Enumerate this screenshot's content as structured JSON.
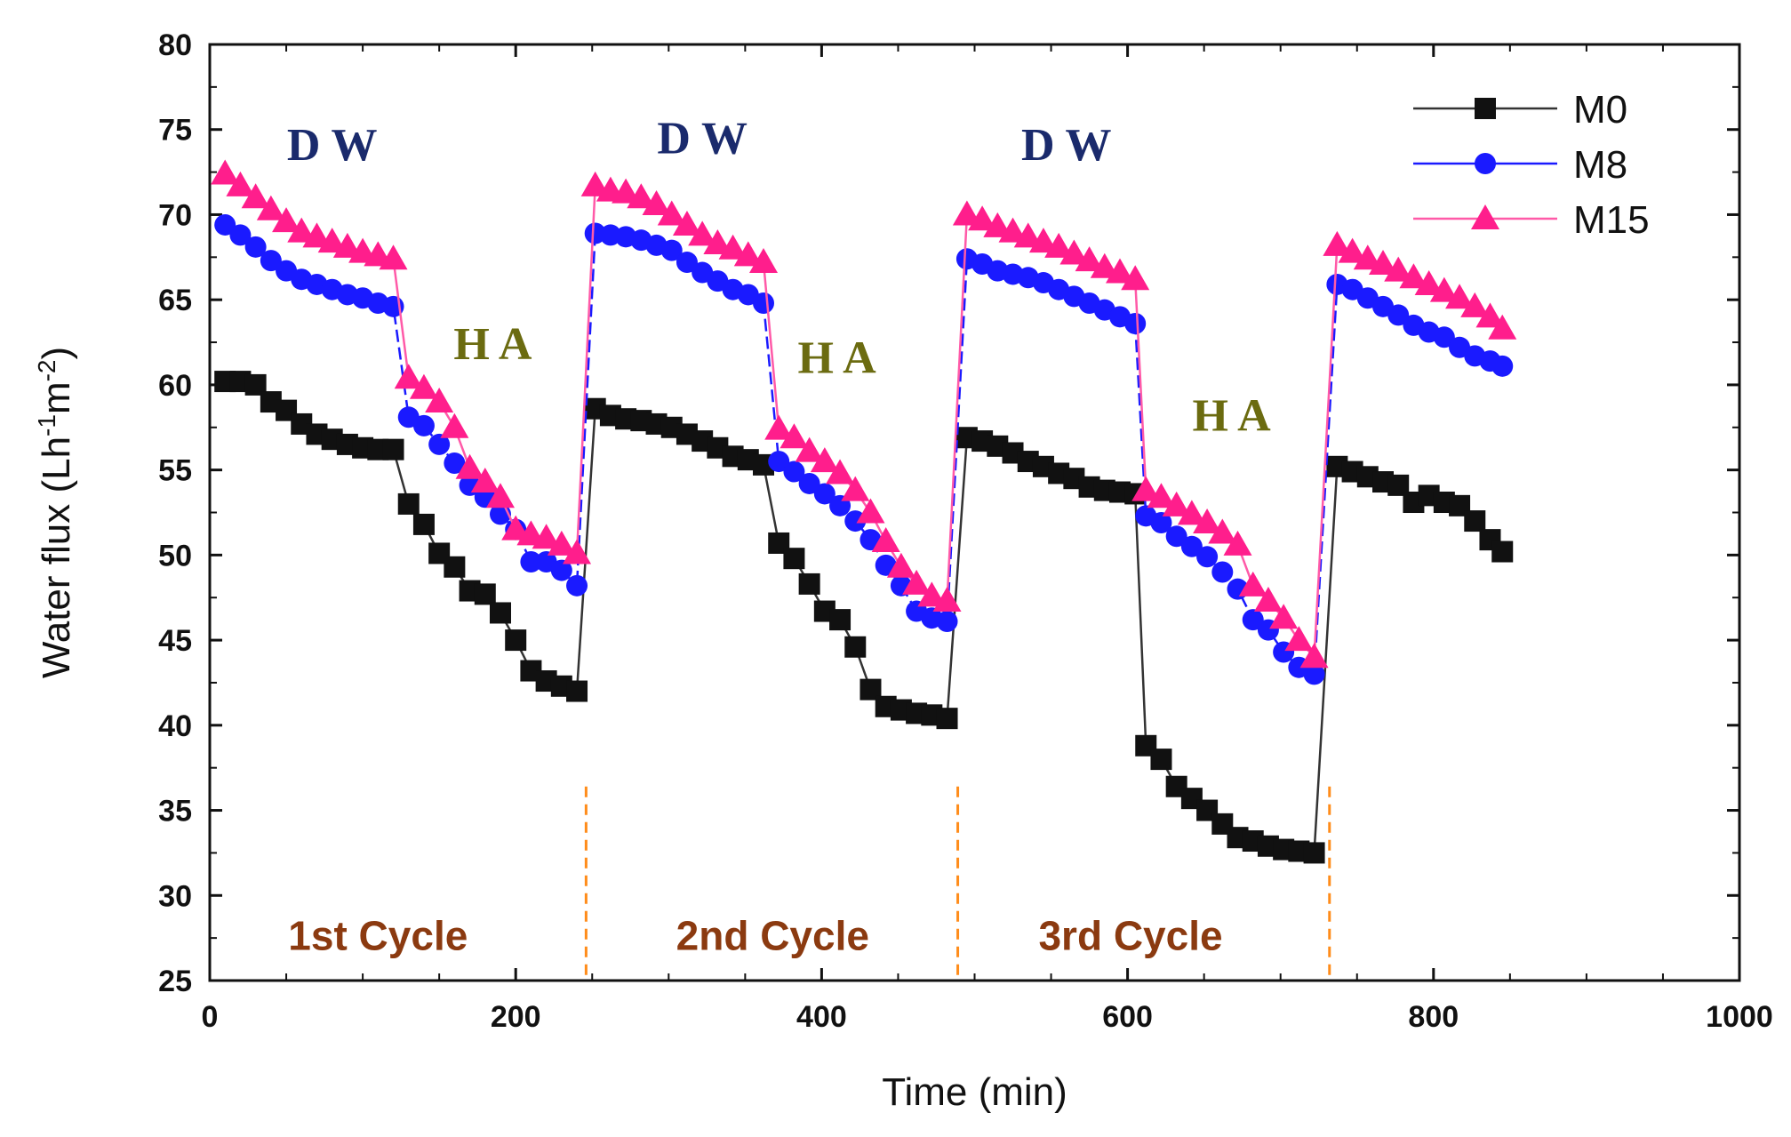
{
  "chart_data": {
    "type": "line",
    "xlabel": "Time (min)",
    "ylabel": "Water flux (Lh",
    "ylabel_sup1": "-1",
    "ylabel_mid": "m",
    "ylabel_sup2": "-2",
    "ylabel_end": ")",
    "xlim": [
      0,
      1000
    ],
    "ylim": [
      25,
      80
    ],
    "xticks": [
      0,
      200,
      400,
      600,
      800,
      1000
    ],
    "yticks": [
      25,
      30,
      35,
      40,
      45,
      50,
      55,
      60,
      65,
      70,
      75,
      80
    ],
    "legend_position": "top-right",
    "annotations": [
      {
        "text": "D W",
        "x": 80,
        "y": 73.2,
        "color": "#1a2a6c"
      },
      {
        "text": "D W",
        "x": 322,
        "y": 73.6,
        "color": "#1a2a6c"
      },
      {
        "text": "D W",
        "x": 560,
        "y": 73.2,
        "color": "#1a2a6c"
      },
      {
        "text": "H A",
        "x": 185,
        "y": 61.5,
        "color": "#6b6b10"
      },
      {
        "text": "H A",
        "x": 410,
        "y": 60.7,
        "color": "#6b6b10"
      },
      {
        "text": "H A",
        "x": 668,
        "y": 57.3,
        "color": "#6b6b10"
      }
    ],
    "cycle_labels": [
      {
        "text": "1st Cycle",
        "x": 110
      },
      {
        "text": "2nd Cycle",
        "x": 368
      },
      {
        "text": "3rd Cycle",
        "x": 602
      }
    ],
    "cycle_boundaries": [
      246,
      489,
      732
    ],
    "series": [
      {
        "name": "M0",
        "color": "#111111",
        "line_color": "#333333",
        "marker": "square",
        "segments": [
          {
            "x": [
              10,
              20,
              30,
              40,
              50,
              60,
              70,
              80,
              90,
              100,
              110,
              120
            ],
            "y": [
              60.2,
              60.2,
              60.0,
              59.0,
              58.5,
              57.7,
              57.1,
              56.8,
              56.5,
              56.3,
              56.2,
              56.2
            ]
          },
          {
            "x": [
              130,
              140,
              150,
              160,
              170,
              180,
              190,
              200,
              210,
              220,
              230,
              240
            ],
            "y": [
              53.0,
              51.8,
              50.1,
              49.3,
              47.9,
              47.7,
              46.6,
              45.0,
              43.2,
              42.6,
              42.3,
              42.0
            ]
          },
          {
            "x": [
              252,
              262,
              272,
              282,
              292,
              302,
              312,
              322,
              332,
              342,
              352,
              362
            ],
            "y": [
              58.6,
              58.2,
              58.0,
              57.9,
              57.7,
              57.5,
              57.1,
              56.7,
              56.3,
              55.8,
              55.6,
              55.3
            ]
          },
          {
            "x": [
              372,
              382,
              392,
              402,
              412,
              422,
              432,
              442,
              452,
              462,
              472,
              482
            ],
            "y": [
              50.7,
              49.8,
              48.3,
              46.7,
              46.2,
              44.6,
              42.1,
              41.1,
              40.9,
              40.7,
              40.6,
              40.4
            ]
          },
          {
            "x": [
              495,
              505,
              515,
              525,
              535,
              545,
              555,
              565,
              575,
              585,
              595,
              605
            ],
            "y": [
              56.9,
              56.7,
              56.4,
              56.0,
              55.5,
              55.2,
              54.8,
              54.5,
              54.0,
              53.8,
              53.7,
              53.6
            ]
          },
          {
            "x": [
              612,
              622,
              632,
              642,
              652,
              662,
              672,
              682,
              692,
              702,
              712,
              722
            ],
            "y": [
              38.8,
              38.0,
              36.4,
              35.7,
              35.0,
              34.2,
              33.4,
              33.2,
              32.9,
              32.7,
              32.6,
              32.5
            ]
          },
          {
            "x": [
              737,
              747,
              757,
              767,
              777,
              787,
              797,
              807,
              817,
              827,
              837
            ],
            "y": [
              55.2,
              54.9,
              54.6,
              54.3,
              54.1,
              53.1,
              53.5,
              53.1,
              52.9,
              52.0,
              50.9
            ]
          },
          {
            "x": [
              845
            ],
            "y": [
              50.2
            ]
          }
        ]
      },
      {
        "name": "M8",
        "color": "#1a1aff",
        "line_color": "#1a1aff",
        "marker": "circle",
        "segments": [
          {
            "x": [
              10,
              20,
              30,
              40,
              50,
              60,
              70,
              80,
              90,
              100,
              110,
              120
            ],
            "y": [
              69.4,
              68.8,
              68.1,
              67.3,
              66.7,
              66.2,
              65.9,
              65.6,
              65.3,
              65.1,
              64.8,
              64.6
            ]
          },
          {
            "x": [
              130,
              140,
              150,
              160,
              170,
              180,
              190,
              200,
              210,
              220,
              230,
              240
            ],
            "y": [
              58.1,
              57.6,
              56.5,
              55.4,
              54.1,
              53.4,
              52.4,
              51.5,
              49.6,
              49.6,
              49.1,
              48.2
            ]
          },
          {
            "x": [
              252,
              262,
              272,
              282,
              292,
              302,
              312,
              322,
              332,
              342,
              352,
              362
            ],
            "y": [
              68.9,
              68.8,
              68.7,
              68.5,
              68.2,
              67.9,
              67.2,
              66.6,
              66.1,
              65.6,
              65.3,
              64.8
            ]
          },
          {
            "x": [
              372,
              382,
              392,
              402,
              412,
              422,
              432,
              442,
              452,
              462,
              472,
              482
            ],
            "y": [
              55.5,
              54.9,
              54.2,
              53.6,
              52.9,
              52.0,
              50.9,
              49.4,
              48.2,
              46.7,
              46.3,
              46.1
            ]
          },
          {
            "x": [
              495,
              505,
              515,
              525,
              535,
              545,
              555,
              565,
              575,
              585,
              595,
              605
            ],
            "y": [
              67.4,
              67.1,
              66.7,
              66.5,
              66.3,
              66.0,
              65.6,
              65.2,
              64.8,
              64.4,
              64.0,
              63.6
            ]
          },
          {
            "x": [
              612,
              622,
              632,
              642,
              652,
              662,
              672,
              682,
              692,
              702,
              712,
              722
            ],
            "y": [
              52.3,
              51.9,
              51.1,
              50.5,
              49.9,
              49.0,
              48.0,
              46.2,
              45.6,
              44.3,
              43.4,
              43.0
            ]
          },
          {
            "x": [
              737,
              747,
              757,
              767,
              777,
              787,
              797,
              807,
              817,
              827,
              837,
              845
            ],
            "y": [
              65.9,
              65.6,
              65.1,
              64.6,
              64.1,
              63.5,
              63.1,
              62.8,
              62.2,
              61.7,
              61.4,
              61.1
            ]
          }
        ]
      },
      {
        "name": "M15",
        "color": "#ff1e8c",
        "line_color": "#ff5aa8",
        "marker": "triangle",
        "segments": [
          {
            "x": [
              10,
              20,
              30,
              40,
              50,
              60,
              70,
              80,
              90,
              100,
              110,
              120
            ],
            "y": [
              72.4,
              71.7,
              71.0,
              70.3,
              69.6,
              69.0,
              68.7,
              68.4,
              68.1,
              67.8,
              67.6,
              67.4
            ]
          },
          {
            "x": [
              130,
              140,
              150,
              160,
              170,
              180,
              190,
              200,
              210,
              220,
              230,
              240
            ],
            "y": [
              60.4,
              59.8,
              59.0,
              57.5,
              55.1,
              54.3,
              53.4,
              51.5,
              51.2,
              51.0,
              50.6,
              50.1
            ]
          },
          {
            "x": [
              252,
              262,
              272,
              282,
              292,
              302,
              312,
              322,
              332,
              342,
              352,
              362
            ],
            "y": [
              71.7,
              71.4,
              71.3,
              71.0,
              70.6,
              70.0,
              69.4,
              68.8,
              68.3,
              68.0,
              67.6,
              67.2
            ]
          },
          {
            "x": [
              372,
              382,
              392,
              402,
              412,
              422,
              432,
              442,
              452,
              462,
              472,
              482
            ],
            "y": [
              57.4,
              56.9,
              56.1,
              55.5,
              54.8,
              53.8,
              52.5,
              50.8,
              49.3,
              48.3,
              47.6,
              47.3
            ]
          },
          {
            "x": [
              495,
              505,
              515,
              525,
              535,
              545,
              555,
              565,
              575,
              585,
              595,
              605
            ],
            "y": [
              70.0,
              69.7,
              69.3,
              69.0,
              68.7,
              68.4,
              68.1,
              67.7,
              67.3,
              66.9,
              66.6,
              66.2
            ]
          },
          {
            "x": [
              612,
              622,
              632,
              642,
              652,
              662,
              672,
              682,
              692,
              702,
              712,
              722
            ],
            "y": [
              53.8,
              53.4,
              52.9,
              52.4,
              51.9,
              51.3,
              50.6,
              48.2,
              47.3,
              46.3,
              45.0,
              44.0
            ]
          },
          {
            "x": [
              737,
              747,
              757,
              767,
              777,
              787,
              797,
              807,
              817,
              827,
              837,
              845
            ],
            "y": [
              68.2,
              67.8,
              67.4,
              67.1,
              66.7,
              66.3,
              65.9,
              65.5,
              65.1,
              64.6,
              64.0,
              63.3
            ]
          }
        ]
      }
    ]
  }
}
